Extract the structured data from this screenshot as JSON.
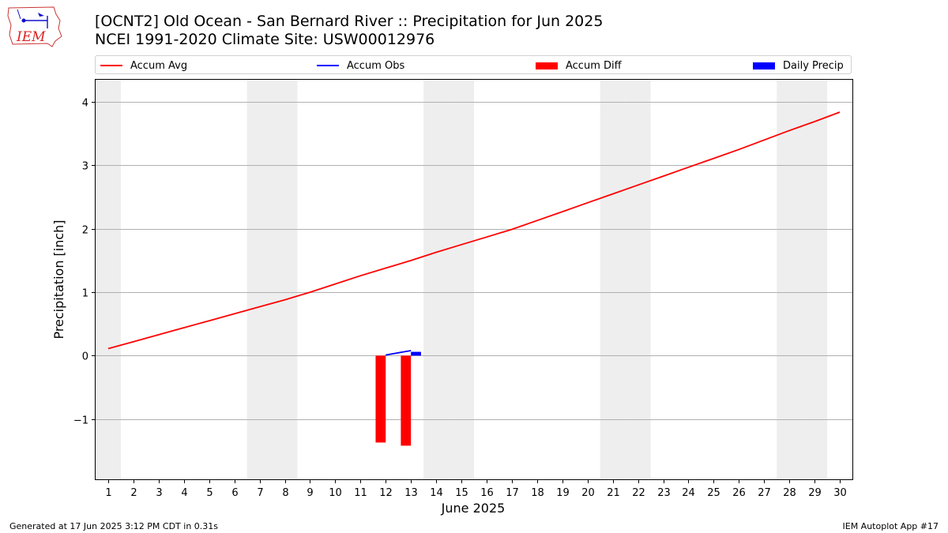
{
  "header": {
    "logo_text": "IEM",
    "title_line1": "[OCNT2] Old Ocean - San Bernard River :: Precipitation for Jun 2025",
    "title_line2": "NCEI 1991-2020 Climate Site: USW00012976"
  },
  "legend": {
    "items": [
      {
        "label": "Accum Avg",
        "color": "#ff0000",
        "kind": "line"
      },
      {
        "label": "Accum Obs",
        "color": "#0000ff",
        "kind": "line"
      },
      {
        "label": "Accum Diff",
        "color": "#ff0000",
        "kind": "box"
      },
      {
        "label": "Daily Precip",
        "color": "#0000ff",
        "kind": "box"
      }
    ]
  },
  "chart_data": {
    "type": "line",
    "xlabel": "June 2025",
    "ylabel": "Precipitation [inch]",
    "x": [
      1,
      2,
      3,
      4,
      5,
      6,
      7,
      8,
      9,
      10,
      11,
      12,
      13,
      14,
      15,
      16,
      17,
      18,
      19,
      20,
      21,
      22,
      23,
      24,
      25,
      26,
      27,
      28,
      29,
      30
    ],
    "xlim": [
      0.5,
      30.5
    ],
    "ylim": [
      -1.95,
      4.35
    ],
    "yticks": [
      -1,
      0,
      1,
      2,
      3,
      4
    ],
    "ytick_labels": [
      "−1",
      "0",
      "1",
      "2",
      "3",
      "4"
    ],
    "weekend_days": [
      1,
      7,
      8,
      14,
      15,
      21,
      22,
      28,
      29
    ],
    "grid": "horizontal",
    "series": [
      {
        "name": "Accum Avg",
        "type": "line",
        "color": "#ff0000",
        "x": [
          1,
          2,
          3,
          4,
          5,
          6,
          7,
          8,
          9,
          10,
          11,
          12,
          13,
          14,
          15,
          16,
          17,
          18,
          19,
          20,
          21,
          22,
          23,
          24,
          25,
          26,
          27,
          28,
          29,
          30
        ],
        "values": [
          0.11,
          0.22,
          0.33,
          0.44,
          0.55,
          0.66,
          0.77,
          0.88,
          1.0,
          1.13,
          1.26,
          1.38,
          1.5,
          1.63,
          1.75,
          1.87,
          1.99,
          2.13,
          2.27,
          2.41,
          2.55,
          2.69,
          2.83,
          2.97,
          3.11,
          3.25,
          3.4,
          3.55,
          3.69,
          3.84
        ]
      },
      {
        "name": "Accum Obs",
        "type": "line",
        "color": "#0000ff",
        "x": [
          12,
          13
        ],
        "values": [
          0.01,
          0.08
        ]
      },
      {
        "name": "Accum Diff",
        "type": "bar",
        "color": "#ff0000",
        "x": [
          12,
          13
        ],
        "values": [
          -1.37,
          -1.42
        ]
      },
      {
        "name": "Daily Precip",
        "type": "bar",
        "color": "#0000ff",
        "x": [
          13
        ],
        "values": [
          0.06
        ]
      }
    ]
  },
  "footer": {
    "generated": "Generated at 17 Jun 2025 3:12 PM CDT in 0.31s",
    "app": "IEM Autoplot App #17"
  }
}
